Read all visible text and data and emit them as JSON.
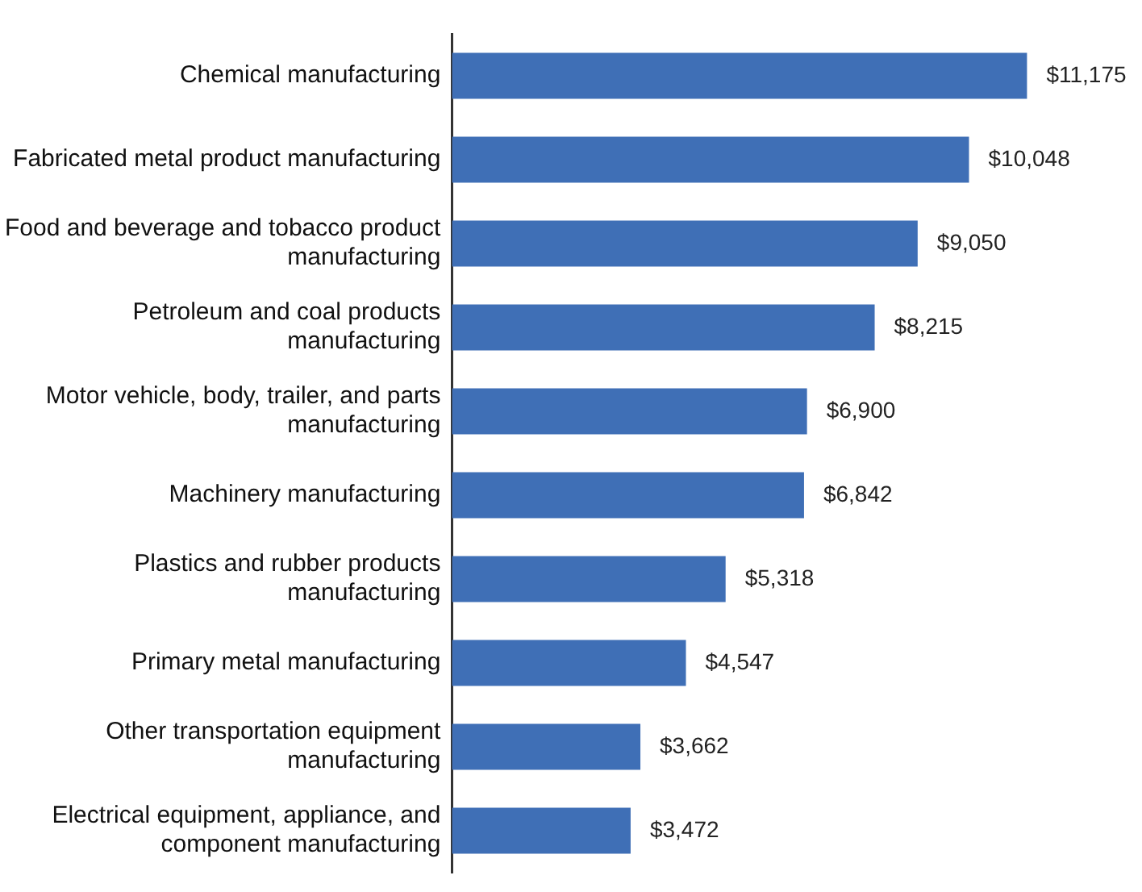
{
  "chart_data": {
    "type": "bar",
    "orientation": "horizontal",
    "categories": [
      "Chemical manufacturing",
      "Fabricated metal product manufacturing",
      "Food and beverage and tobacco product manufacturing",
      "Petroleum and coal products manufacturing",
      "Motor vehicle, body, trailer, and parts manufacturing",
      "Machinery manufacturing",
      "Plastics and rubber products manufacturing",
      "Primary metal manufacturing",
      "Other transportation equipment manufacturing",
      "Electrical equipment, appliance, and component manufacturing"
    ],
    "values": [
      11175,
      10048,
      9050,
      8215,
      6900,
      6842,
      5318,
      4547,
      3662,
      3472
    ],
    "value_labels": [
      "$11,175",
      "$10,048",
      "$9,050",
      "$8,215",
      "$6,900",
      "$6,842",
      "$5,318",
      "$4,547",
      "$3,662",
      "$3,472"
    ],
    "color": "#3f6fb6",
    "tick_labels": "y"
  }
}
